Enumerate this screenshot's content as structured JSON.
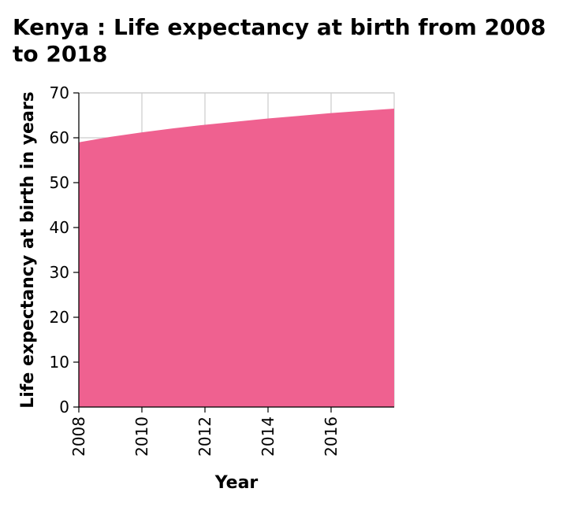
{
  "chart_data": {
    "type": "area",
    "title": "Kenya : Life expectancy at birth from 2008 to 2018",
    "xlabel": "Year",
    "ylabel": "Life expectancy at birth in years",
    "x": [
      2008,
      2009,
      2010,
      2011,
      2012,
      2013,
      2014,
      2015,
      2016,
      2017,
      2018
    ],
    "values": [
      59.0,
      60.2,
      61.2,
      62.1,
      62.9,
      63.6,
      64.3,
      64.9,
      65.5,
      66.0,
      66.5
    ],
    "xlim": [
      2008,
      2018
    ],
    "ylim": [
      0,
      70
    ],
    "xticks": [
      "2008",
      "2010",
      "2012",
      "2014",
      "2016"
    ],
    "yticks": [
      "0",
      "10",
      "20",
      "30",
      "40",
      "50",
      "60",
      "70"
    ],
    "grid": true,
    "fill_color": "#ef6190"
  }
}
